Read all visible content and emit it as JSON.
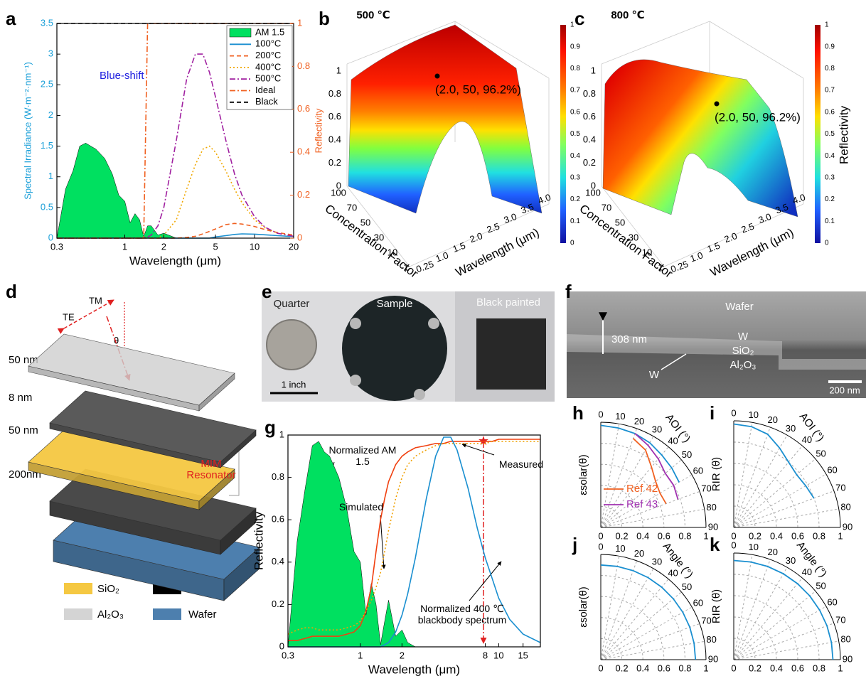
{
  "panel_labels": [
    "a",
    "b",
    "c",
    "d",
    "e",
    "f",
    "g",
    "h",
    "i",
    "j",
    "k"
  ],
  "chart_data": [
    {
      "type": "line",
      "xlabel": "Wavelength (μm)",
      "ylabel": "Spectral Irradiance (W·m⁻²·nm⁻¹)",
      "y2label": "Reflectivity",
      "annotation": "Blue-shift",
      "xscale": "log",
      "xlim": [
        0.3,
        20
      ],
      "xticks": [
        0.3,
        1,
        2,
        5,
        10,
        20
      ],
      "ylim": [
        0,
        3.5
      ],
      "yticks": [
        0,
        0.5,
        1,
        1.5,
        2,
        2.5,
        3,
        3.5
      ],
      "ycolor": "#1a9fd8",
      "y2lim": [
        0,
        1
      ],
      "y2ticks": [
        0,
        0.2,
        0.4,
        0.6,
        0.8,
        1
      ],
      "y2color": "#f06020",
      "legend": "upper right",
      "x": [
        0.3,
        0.35,
        0.4,
        0.45,
        0.5,
        0.6,
        0.7,
        0.8,
        0.9,
        1.0,
        1.1,
        1.2,
        1.3,
        1.4,
        1.5,
        1.6,
        1.8,
        2,
        2.5,
        3,
        3.5,
        4,
        4.5,
        5,
        6,
        7,
        8,
        10,
        12,
        15,
        20
      ],
      "series": [
        {
          "name": "AM 1.5",
          "color": "#00e060",
          "style": "area",
          "values": [
            0,
            0.8,
            1.1,
            1.5,
            1.55,
            1.45,
            1.3,
            1.05,
            0.7,
            0.6,
            0.25,
            0.4,
            0.3,
            0.02,
            0.2,
            0.2,
            0.05,
            0.08,
            0,
            0,
            0,
            0,
            0,
            0,
            0,
            0,
            0,
            0,
            0,
            0,
            0
          ]
        },
        {
          "name": "100°C",
          "color": "#1a8fd0",
          "dash": "solid",
          "values": [
            0,
            0,
            0,
            0,
            0,
            0,
            0,
            0,
            0,
            0,
            0,
            0,
            0,
            0,
            0,
            0,
            0,
            0,
            0,
            0,
            0,
            0,
            0,
            0.02,
            0.04,
            0.06,
            0.07,
            0.065,
            0.055,
            0.04,
            0.025
          ]
        },
        {
          "name": "200°C",
          "color": "#f06020",
          "dash": "dashed",
          "values": [
            0,
            0,
            0,
            0,
            0,
            0,
            0,
            0,
            0,
            0,
            0,
            0,
            0,
            0,
            0,
            0,
            0,
            0,
            0,
            0.01,
            0.03,
            0.07,
            0.11,
            0.15,
            0.22,
            0.24,
            0.23,
            0.19,
            0.14,
            0.09,
            0.05
          ]
        },
        {
          "name": "400°C",
          "color": "#f0a800",
          "dash": "dotted",
          "values": [
            0,
            0,
            0,
            0,
            0,
            0,
            0,
            0,
            0,
            0,
            0,
            0,
            0,
            0,
            0,
            0,
            0,
            0.05,
            0.3,
            0.8,
            1.2,
            1.45,
            1.5,
            1.4,
            1.1,
            0.8,
            0.58,
            0.3,
            0.17,
            0.08,
            0.03
          ]
        },
        {
          "name": "500°C",
          "color": "#a020a0",
          "dash": "dashdot",
          "values": [
            0,
            0,
            0,
            0,
            0,
            0,
            0,
            0,
            0,
            0,
            0,
            0,
            0,
            0,
            0.02,
            0.05,
            0.2,
            0.5,
            1.6,
            2.6,
            3.0,
            3.0,
            2.7,
            2.3,
            1.6,
            1.05,
            0.7,
            0.35,
            0.18,
            0.08,
            0.03
          ]
        },
        {
          "name": "Ideal",
          "color": "#f06020",
          "dash": "dashdot",
          "axis": "y2",
          "values": [
            0,
            0,
            0,
            0,
            0,
            0,
            0,
            0,
            0,
            0,
            0,
            0,
            0,
            0,
            1,
            1,
            1,
            1,
            1,
            1,
            1,
            1,
            1,
            1,
            1,
            1,
            1,
            1,
            1,
            1,
            1
          ]
        },
        {
          "name": "Black",
          "color": "#000000",
          "dash": "dashed",
          "axis": "y2",
          "values": [
            1,
            1,
            1,
            1,
            1,
            1,
            1,
            1,
            1,
            1,
            1,
            1,
            1,
            1,
            1,
            1,
            1,
            1,
            1,
            1,
            1,
            1,
            1,
            1,
            1,
            1,
            1,
            1,
            1,
            1,
            1
          ]
        }
      ]
    },
    {
      "type": "line",
      "xlabel": "Wavelength (μm)",
      "ylabel": "Reflectivity",
      "xscale": "log",
      "xlim": [
        0.3,
        20
      ],
      "xticks": [
        0.3,
        1,
        2,
        8,
        10,
        15
      ],
      "ylim": [
        0,
        1
      ],
      "yticks": [
        0,
        0.2,
        0.4,
        0.6,
        0.8,
        1
      ],
      "legend": "inline",
      "x": [
        0.3,
        0.35,
        0.4,
        0.45,
        0.5,
        0.55,
        0.6,
        0.7,
        0.8,
        0.9,
        1.0,
        1.1,
        1.2,
        1.3,
        1.4,
        1.5,
        1.6,
        1.8,
        2,
        2.2,
        2.5,
        3,
        3.5,
        4,
        4.5,
        5,
        6,
        7,
        8,
        9,
        10,
        12,
        15,
        20
      ],
      "series": [
        {
          "name": "Normalized AM 1.5",
          "color": "#00e060",
          "style": "area",
          "values": [
            0,
            0.5,
            0.75,
            0.95,
            0.97,
            0.92,
            0.9,
            0.8,
            0.65,
            0.45,
            0.4,
            0.15,
            0.3,
            0.2,
            0.01,
            0.12,
            0.22,
            0.05,
            0.08,
            0.02,
            0,
            0,
            0,
            0,
            0,
            0,
            0,
            0,
            0,
            0,
            0,
            0,
            0,
            0
          ]
        },
        {
          "name": "Simulated",
          "color": "#f04010",
          "dash": "solid",
          "values": [
            0.03,
            0.03,
            0.04,
            0.05,
            0.05,
            0.05,
            0.05,
            0.05,
            0.06,
            0.07,
            0.1,
            0.17,
            0.28,
            0.45,
            0.6,
            0.7,
            0.78,
            0.86,
            0.9,
            0.92,
            0.94,
            0.95,
            0.96,
            0.96,
            0.97,
            0.97,
            0.97,
            0.97,
            0.97,
            0.97,
            0.98,
            0.98,
            0.98,
            0.98
          ]
        },
        {
          "name": "Measured",
          "color": "#f0a000",
          "dash": "dotted",
          "values": [
            0.06,
            0.08,
            0.09,
            0.09,
            0.08,
            0.08,
            0.08,
            0.08,
            0.09,
            0.1,
            0.12,
            0.17,
            0.22,
            0.28,
            0.35,
            0.45,
            0.55,
            0.7,
            0.8,
            0.86,
            0.9,
            0.93,
            0.95,
            0.96,
            0.96,
            0.96,
            0.96,
            0.96,
            0.96,
            0.97,
            0.97,
            0.97,
            0.97,
            0.97
          ]
        },
        {
          "name": "Normalized 400 ℃ blackbody spectrum",
          "color": "#1a8fd0",
          "dash": "solid",
          "values": [
            0,
            0,
            0,
            0,
            0,
            0,
            0,
            0,
            0,
            0,
            0,
            0,
            0,
            0,
            0,
            0.01,
            0.02,
            0.07,
            0.15,
            0.25,
            0.42,
            0.7,
            0.9,
            0.99,
            0.99,
            0.93,
            0.75,
            0.56,
            0.42,
            0.32,
            0.23,
            0.13,
            0.06,
            0.02
          ]
        }
      ]
    },
    {
      "type": "polar",
      "xlabel": "AOI (°)",
      "ylabel": "εsolar(θ)",
      "xlim": [
        0,
        90
      ],
      "xticks": [
        0,
        10,
        20,
        30,
        40,
        50,
        60,
        70,
        80,
        90
      ],
      "ylim": [
        0,
        1
      ],
      "yticks": [
        0,
        0.2,
        0.4,
        0.6,
        0.8,
        1
      ],
      "x": [
        0,
        10,
        20,
        30,
        40,
        50,
        60,
        70
      ],
      "series": [
        {
          "color": "#1a8fd0",
          "values": [
            0.97,
            0.96,
            0.95,
            0.93,
            0.9,
            0.88,
            0.86,
            null
          ]
        },
        {
          "name": "Ref 42",
          "color": "#f06020",
          "values": [
            null,
            null,
            0.9,
            0.85,
            0.75,
            0.68,
            0.65,
            0.66
          ]
        },
        {
          "name": "Ref 43",
          "color": "#a030b0",
          "values": [
            null,
            null,
            0.95,
            0.9,
            0.85,
            0.8,
            0.8,
            0.78
          ]
        }
      ]
    },
    {
      "type": "polar",
      "xlabel": "AOI (°)",
      "ylabel": "RIR (θ)",
      "xlim": [
        0,
        90
      ],
      "xticks": [
        0,
        10,
        20,
        30,
        40,
        50,
        60,
        70,
        80,
        90
      ],
      "ylim": [
        0,
        1
      ],
      "yticks": [
        0,
        0.2,
        0.4,
        0.6,
        0.8,
        1
      ],
      "x": [
        0,
        10,
        20,
        30,
        40,
        50,
        60,
        70
      ],
      "series": [
        {
          "color": "#1a8fd0",
          "values": [
            0.97,
            0.96,
            0.93,
            0.86,
            0.8,
            0.77,
            0.78,
            0.8
          ]
        }
      ]
    },
    {
      "type": "polar",
      "xlabel": "Angle (°)",
      "ylabel": "εsolar(θ)",
      "xlim": [
        0,
        90
      ],
      "xticks": [
        0,
        10,
        20,
        30,
        40,
        50,
        60,
        70,
        80,
        90
      ],
      "ylim": [
        0,
        1
      ],
      "yticks": [
        0,
        0.2,
        0.4,
        0.6,
        0.8,
        1
      ],
      "x": [
        0,
        10,
        20,
        30,
        40,
        50,
        60,
        70,
        80,
        90
      ],
      "series": [
        {
          "color": "#1a8fd0",
          "values": [
            0.9,
            0.9,
            0.9,
            0.9,
            0.9,
            0.9,
            0.9,
            0.9,
            0.9,
            0.9
          ]
        }
      ]
    },
    {
      "type": "polar",
      "xlabel": "Angle (°)",
      "ylabel": "RIR (θ)",
      "xlim": [
        0,
        90
      ],
      "xticks": [
        0,
        10,
        20,
        30,
        40,
        50,
        60,
        70,
        80,
        90
      ],
      "ylim": [
        0,
        1
      ],
      "yticks": [
        0,
        0.2,
        0.4,
        0.6,
        0.8,
        1
      ],
      "x": [
        0,
        10,
        20,
        30,
        40,
        50,
        60,
        70,
        80,
        90
      ],
      "series": [
        {
          "color": "#1a8fd0",
          "values": [
            0.93,
            0.93,
            0.93,
            0.93,
            0.93,
            0.93,
            0.93,
            0.93,
            0.93,
            0.93
          ]
        }
      ]
    }
  ],
  "surface_plots": [
    {
      "title": "500 ℃",
      "annotation": "(2.0, 50, 96.2%)",
      "z_ticks": [
        "0",
        "0.2",
        "0.4",
        "0.6",
        "0.8",
        "1"
      ],
      "concentration_ticks": [
        "100",
        "70",
        "50",
        "30",
        "10",
        "1"
      ],
      "wavelength_ticks": [
        "0.25",
        "1.0",
        "1.5",
        "2.0",
        "2.5",
        "3.0",
        "3.5",
        "4.0"
      ],
      "xlabel": "Concentration Factor",
      "ylabel": "Wavelength (μm)",
      "colorbar_ticks": [
        "0",
        "0.1",
        "0.2",
        "0.3",
        "0.4",
        "0.5",
        "0.6",
        "0.7",
        "0.8",
        "0.9",
        "1"
      ]
    },
    {
      "title": "800 ℃",
      "annotation": "(2.0, 50, 96.2%)",
      "z_ticks": [
        "0",
        "0.2",
        "0.4",
        "0.6",
        "0.8",
        "1"
      ],
      "concentration_ticks": [
        "100",
        "70",
        "50",
        "30",
        "10",
        "1"
      ],
      "wavelength_ticks": [
        "0.25",
        "1.0",
        "1.5",
        "2.0",
        "2.5",
        "3.0",
        "3.5",
        "4.0"
      ],
      "xlabel": "Concentration Factor",
      "ylabel": "Wavelength (μm)",
      "colorbar_ticks": [
        "0",
        "0.1",
        "0.2",
        "0.3",
        "0.4",
        "0.5",
        "0.6",
        "0.7",
        "0.8",
        "0.9",
        "1"
      ],
      "colorbar_label": "Reflectivity"
    }
  ],
  "layer_diagram": {
    "incident_labels": [
      "TM",
      "TE",
      "θ"
    ],
    "thicknesses": [
      "50 nm",
      "8  nm",
      "50 nm",
      "200nm"
    ],
    "resonator_label": "MIM Resonator",
    "legend": [
      "SiO₂",
      "W",
      "Al₂O₃",
      "Wafer"
    ]
  },
  "photo": {
    "labels": [
      "Quarter",
      "Sample",
      "Black painted"
    ],
    "scale_bar": "1 inch"
  },
  "sem_image": {
    "labels": [
      "Wafer",
      "308 nm",
      "W",
      "SiO₂",
      "Al₂O₃",
      "W"
    ],
    "scale_bar": "200 nm"
  }
}
